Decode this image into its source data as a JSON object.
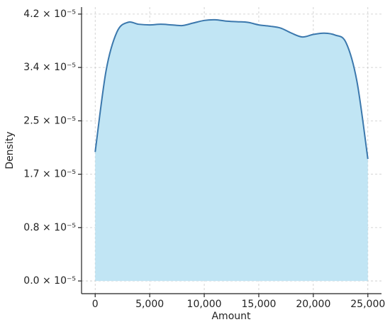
{
  "chart_data": {
    "type": "area",
    "xlabel": "Amount",
    "ylabel": "Density",
    "x": [
      0,
      1000,
      2000,
      3000,
      4000,
      5000,
      6000,
      7000,
      8000,
      9000,
      10000,
      11000,
      12000,
      13000,
      14000,
      15000,
      16000,
      17000,
      18000,
      19000,
      20000,
      21000,
      22000,
      23000,
      24000,
      25000
    ],
    "values": [
      2.03e-05,
      3.31e-05,
      3.92e-05,
      4.07e-05,
      4.04e-05,
      4.03e-05,
      4.04e-05,
      4.03e-05,
      4.02e-05,
      4.06e-05,
      4.1e-05,
      4.11e-05,
      4.09e-05,
      4.08e-05,
      4.07e-05,
      4.03e-05,
      4.01e-05,
      3.98e-05,
      3.9e-05,
      3.84e-05,
      3.88e-05,
      3.9e-05,
      3.87e-05,
      3.75e-05,
      3.14e-05,
      1.92e-05
    ],
    "color": "#3b78ad",
    "fill": "#c1e5f4",
    "xlim": [
      -1250,
      26250
    ],
    "ylim": [
      -2e-06,
      4.31e-05
    ],
    "xticks": [
      0,
      {
        "value": 5000,
        "label": "5,000"
      },
      {
        "value": 10000,
        "label": "10,000"
      },
      {
        "value": 15000,
        "label": "15,000"
      },
      {
        "value": 20000,
        "label": "20,000"
      },
      {
        "value": 25000,
        "label": "25,000"
      }
    ],
    "yticks": [
      {
        "value": 0,
        "label": "0.0 × 10⁻⁵"
      },
      {
        "value": 8.4e-06,
        "label": "0.8 × 10⁻⁵"
      },
      {
        "value": 1.68e-05,
        "label": "1.7 × 10⁻⁵"
      },
      {
        "value": 2.52e-05,
        "label": "2.5 × 10⁻⁵"
      },
      {
        "value": 3.36e-05,
        "label": "3.4 × 10⁻⁵"
      },
      {
        "value": 4.2e-05,
        "label": "4.2 × 10⁻⁵"
      }
    ],
    "grid": true
  }
}
